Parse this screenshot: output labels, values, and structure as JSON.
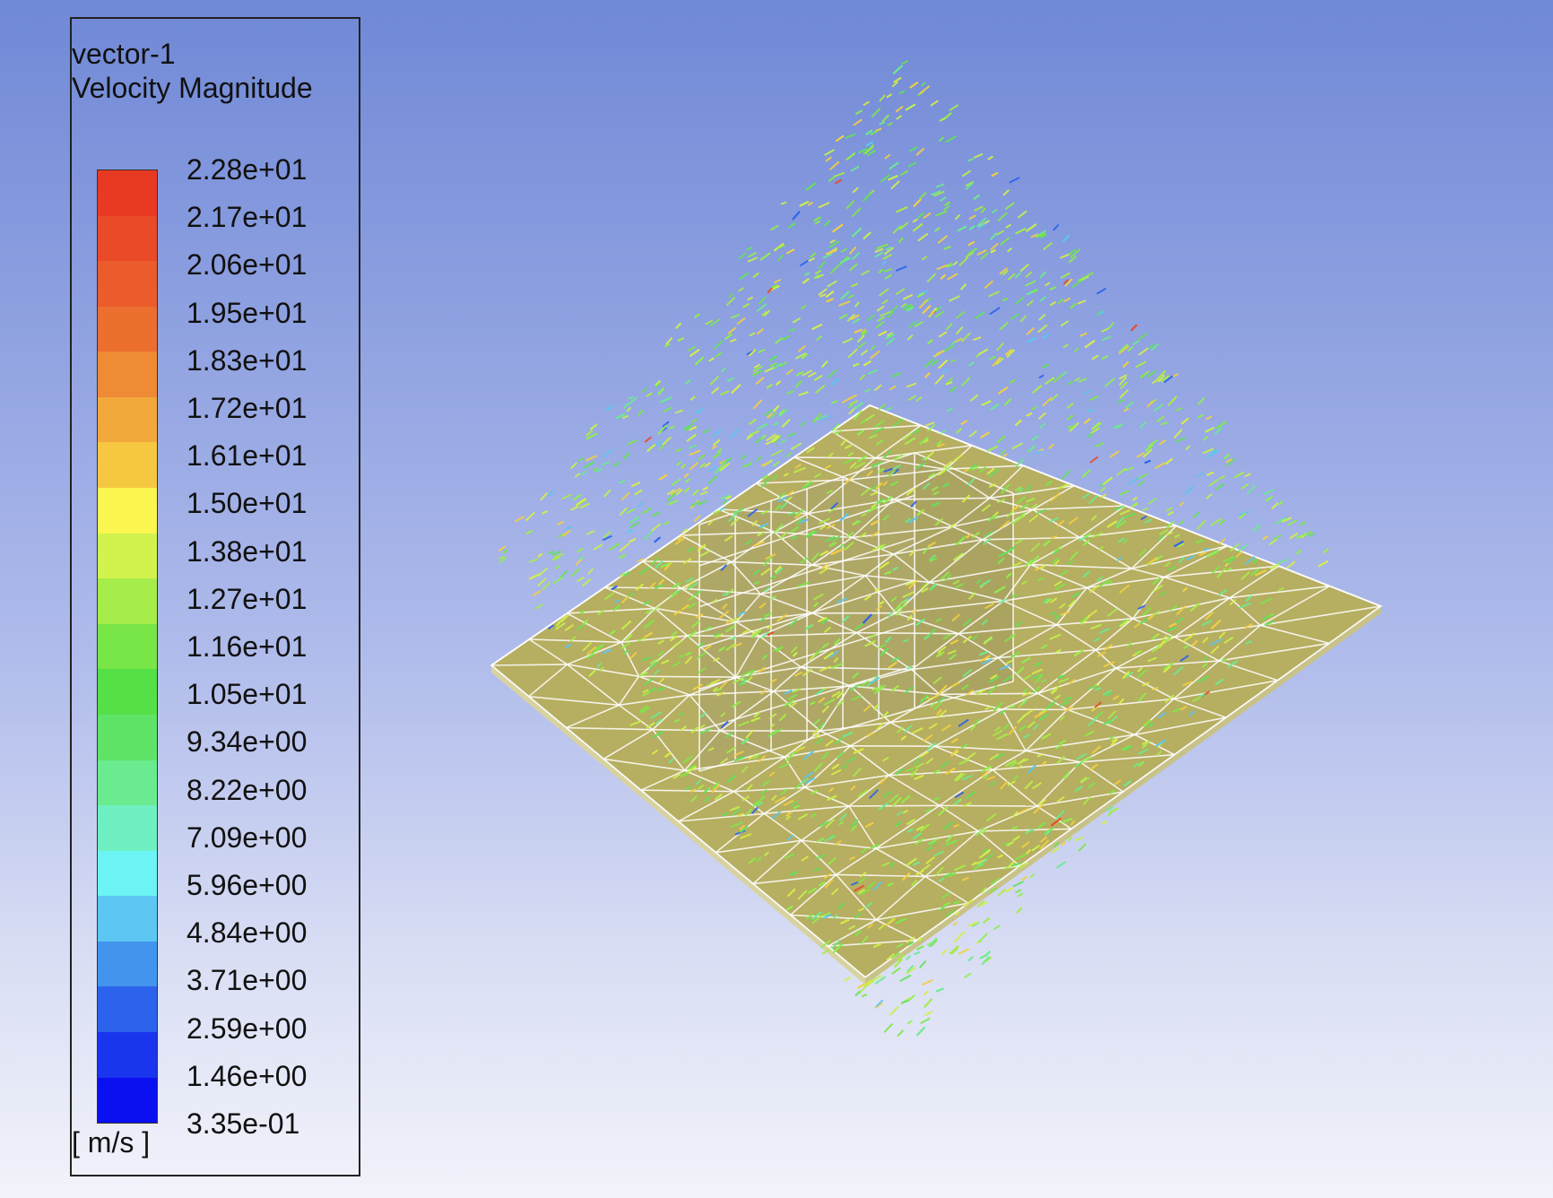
{
  "legend": {
    "title": "vector-1",
    "subtitle": "Velocity Magnitude",
    "units": "[ m/s ]",
    "ticks": [
      "2.28e+01",
      "2.17e+01",
      "2.06e+01",
      "1.95e+01",
      "1.83e+01",
      "1.72e+01",
      "1.61e+01",
      "1.50e+01",
      "1.38e+01",
      "1.27e+01",
      "1.16e+01",
      "1.05e+01",
      "9.34e+00",
      "8.22e+00",
      "7.09e+00",
      "5.96e+00",
      "4.84e+00",
      "3.71e+00",
      "2.59e+00",
      "1.46e+00",
      "3.35e-01"
    ],
    "colors": [
      "#e83a22",
      "#e94a27",
      "#ea5c2c",
      "#ec6f30",
      "#ef8a35",
      "#f3a83b",
      "#f6c842",
      "#fbf650",
      "#d2f24d",
      "#a6ec4a",
      "#78e647",
      "#56e048",
      "#5fe468",
      "#6beb8f",
      "#6ef0c2",
      "#6cf4f4",
      "#5bc7f2",
      "#4394ec",
      "#2c63ec",
      "#1a35ee",
      "#0a10f0"
    ]
  },
  "colors": {
    "background_top": "#7089d6",
    "background_bottom": "#f2f3fa",
    "plate": "#b4ad5e",
    "mesh": "#ffffff"
  }
}
